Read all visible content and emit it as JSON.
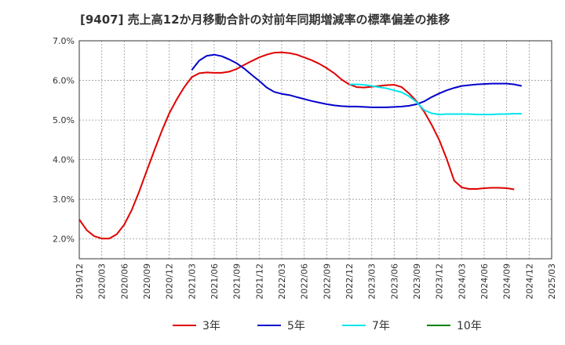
{
  "chart_data": {
    "type": "line",
    "title": "[9407]  売上高12か月移動合計の対前年同期増減率の標準偏差の推移",
    "xlabel": "",
    "ylabel": "",
    "ylim": [
      1.5,
      7.0
    ],
    "y_ticks": [
      "2.0%",
      "3.0%",
      "4.0%",
      "5.0%",
      "6.0%",
      "7.0%"
    ],
    "y_tick_values": [
      2.0,
      3.0,
      4.0,
      5.0,
      6.0,
      7.0
    ],
    "x_range": [
      "2019/12",
      "2025/03"
    ],
    "x_ticks": [
      "2019/12",
      "2020/03",
      "2020/06",
      "2020/09",
      "2020/12",
      "2021/03",
      "2021/06",
      "2021/09",
      "2021/12",
      "2022/03",
      "2022/06",
      "2022/09",
      "2022/12",
      "2023/03",
      "2023/06",
      "2023/09",
      "2023/12",
      "2024/03",
      "2024/06",
      "2024/09",
      "2024/12",
      "2025/03"
    ],
    "grid": true,
    "legend_position": "bottom",
    "series": [
      {
        "name": "3年",
        "color": "#e00000",
        "points": [
          [
            "2019/12",
            2.49
          ],
          [
            "2020/01",
            2.22
          ],
          [
            "2020/02",
            2.07
          ],
          [
            "2020/03",
            2.01
          ],
          [
            "2020/04",
            2.01
          ],
          [
            "2020/05",
            2.12
          ],
          [
            "2020/06",
            2.36
          ],
          [
            "2020/07",
            2.73
          ],
          [
            "2020/08",
            3.2
          ],
          [
            "2020/09",
            3.72
          ],
          [
            "2020/10",
            4.23
          ],
          [
            "2020/11",
            4.72
          ],
          [
            "2020/12",
            5.17
          ],
          [
            "2021/01",
            5.52
          ],
          [
            "2021/02",
            5.83
          ],
          [
            "2021/03",
            6.08
          ],
          [
            "2021/04",
            6.18
          ],
          [
            "2021/05",
            6.2
          ],
          [
            "2021/06",
            6.19
          ],
          [
            "2021/07",
            6.19
          ],
          [
            "2021/08",
            6.22
          ],
          [
            "2021/09",
            6.29
          ],
          [
            "2021/10",
            6.39
          ],
          [
            "2021/11",
            6.49
          ],
          [
            "2021/12",
            6.58
          ],
          [
            "2022/01",
            6.65
          ],
          [
            "2022/02",
            6.7
          ],
          [
            "2022/03",
            6.71
          ],
          [
            "2022/04",
            6.69
          ],
          [
            "2022/05",
            6.65
          ],
          [
            "2022/06",
            6.58
          ],
          [
            "2022/07",
            6.51
          ],
          [
            "2022/08",
            6.42
          ],
          [
            "2022/09",
            6.31
          ],
          [
            "2022/10",
            6.18
          ],
          [
            "2022/11",
            6.02
          ],
          [
            "2022/12",
            5.9
          ],
          [
            "2023/01",
            5.83
          ],
          [
            "2023/02",
            5.82
          ],
          [
            "2023/03",
            5.84
          ],
          [
            "2023/04",
            5.86
          ],
          [
            "2023/05",
            5.88
          ],
          [
            "2023/06",
            5.89
          ],
          [
            "2023/07",
            5.83
          ],
          [
            "2023/08",
            5.67
          ],
          [
            "2023/09",
            5.47
          ],
          [
            "2023/10",
            5.21
          ],
          [
            "2023/11",
            4.88
          ],
          [
            "2023/12",
            4.5
          ],
          [
            "2024/01",
            4.02
          ],
          [
            "2024/02",
            3.47
          ],
          [
            "2024/03",
            3.3
          ],
          [
            "2024/04",
            3.26
          ],
          [
            "2024/05",
            3.26
          ],
          [
            "2024/06",
            3.28
          ],
          [
            "2024/07",
            3.29
          ],
          [
            "2024/08",
            3.29
          ],
          [
            "2024/09",
            3.28
          ],
          [
            "2024/10",
            3.25
          ]
        ]
      },
      {
        "name": "5年",
        "color": "#0000cc",
        "points": [
          [
            "2021/03",
            6.26
          ],
          [
            "2021/04",
            6.5
          ],
          [
            "2021/05",
            6.62
          ],
          [
            "2021/06",
            6.65
          ],
          [
            "2021/07",
            6.61
          ],
          [
            "2021/08",
            6.53
          ],
          [
            "2021/09",
            6.43
          ],
          [
            "2021/10",
            6.3
          ],
          [
            "2021/11",
            6.14
          ],
          [
            "2021/12",
            5.99
          ],
          [
            "2022/01",
            5.82
          ],
          [
            "2022/02",
            5.71
          ],
          [
            "2022/03",
            5.66
          ],
          [
            "2022/04",
            5.63
          ],
          [
            "2022/05",
            5.58
          ],
          [
            "2022/06",
            5.53
          ],
          [
            "2022/07",
            5.48
          ],
          [
            "2022/08",
            5.44
          ],
          [
            "2022/09",
            5.4
          ],
          [
            "2022/10",
            5.37
          ],
          [
            "2022/11",
            5.35
          ],
          [
            "2022/12",
            5.34
          ],
          [
            "2023/01",
            5.34
          ],
          [
            "2023/02",
            5.33
          ],
          [
            "2023/03",
            5.32
          ],
          [
            "2023/04",
            5.32
          ],
          [
            "2023/05",
            5.32
          ],
          [
            "2023/06",
            5.33
          ],
          [
            "2023/07",
            5.34
          ],
          [
            "2023/08",
            5.36
          ],
          [
            "2023/09",
            5.4
          ],
          [
            "2023/10",
            5.47
          ],
          [
            "2023/11",
            5.58
          ],
          [
            "2023/12",
            5.67
          ],
          [
            "2024/01",
            5.75
          ],
          [
            "2024/02",
            5.81
          ],
          [
            "2024/03",
            5.86
          ],
          [
            "2024/04",
            5.88
          ],
          [
            "2024/05",
            5.9
          ],
          [
            "2024/06",
            5.91
          ],
          [
            "2024/07",
            5.92
          ],
          [
            "2024/08",
            5.92
          ],
          [
            "2024/09",
            5.92
          ],
          [
            "2024/10",
            5.9
          ],
          [
            "2024/11",
            5.86
          ]
        ]
      },
      {
        "name": "7年",
        "color": "#00e5ee",
        "points": [
          [
            "2022/12",
            5.9
          ],
          [
            "2023/01",
            5.9
          ],
          [
            "2023/02",
            5.89
          ],
          [
            "2023/03",
            5.86
          ],
          [
            "2023/04",
            5.83
          ],
          [
            "2023/05",
            5.8
          ],
          [
            "2023/06",
            5.75
          ],
          [
            "2023/07",
            5.7
          ],
          [
            "2023/08",
            5.6
          ],
          [
            "2023/09",
            5.45
          ],
          [
            "2023/10",
            5.25
          ],
          [
            "2023/11",
            5.17
          ],
          [
            "2023/12",
            5.14
          ],
          [
            "2024/01",
            5.15
          ],
          [
            "2024/02",
            5.15
          ],
          [
            "2024/03",
            5.15
          ],
          [
            "2024/04",
            5.15
          ],
          [
            "2024/05",
            5.14
          ],
          [
            "2024/06",
            5.14
          ],
          [
            "2024/07",
            5.14
          ],
          [
            "2024/08",
            5.15
          ],
          [
            "2024/09",
            5.15
          ],
          [
            "2024/10",
            5.16
          ],
          [
            "2024/11",
            5.16
          ]
        ]
      },
      {
        "name": "10年",
        "color": "#008000",
        "points": []
      }
    ]
  }
}
